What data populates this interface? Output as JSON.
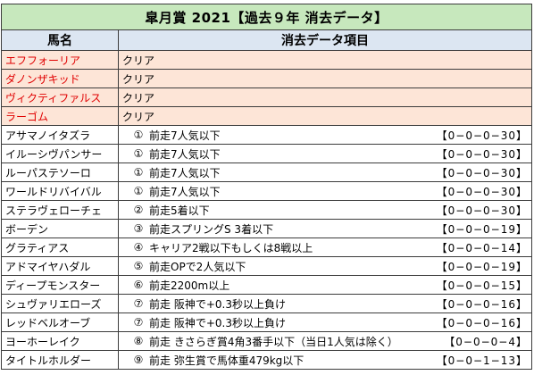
{
  "title": "皐月賞 2021【過去９年 消去データ】",
  "headers": {
    "name": "馬名",
    "data": "消去データ項目"
  },
  "clear_horses": [
    {
      "name": "エフフォーリア",
      "status": "クリア"
    },
    {
      "name": "ダノンザキッド",
      "status": "クリア"
    },
    {
      "name": "ヴィクティファルス",
      "status": "クリア"
    },
    {
      "name": "ラーゴム",
      "status": "クリア"
    }
  ],
  "eliminated_horses": [
    {
      "name": "アサマノイタズラ",
      "num": "①",
      "condition": "前走7人気以下",
      "record": "【0−0−0−30】"
    },
    {
      "name": "イルーシヴパンサー",
      "num": "①",
      "condition": "前走7人気以下",
      "record": "【0−0−0−30】"
    },
    {
      "name": "ルーパステソーロ",
      "num": "①",
      "condition": "前走7人気以下",
      "record": "【0−0−0−30】"
    },
    {
      "name": "ワールドリバイバル",
      "num": "①",
      "condition": "前走7人気以下",
      "record": "【0−0−0−30】"
    },
    {
      "name": "ステラヴェローチェ",
      "num": "②",
      "condition": "前走5着以下",
      "record": "【0−0−0−30】"
    },
    {
      "name": "ボーデン",
      "num": "③",
      "condition": "前走スプリングS 3着以下",
      "record": "【0−0−0−19】"
    },
    {
      "name": "グラティアス",
      "num": "④",
      "condition": "キャリア2戦以下もしくは8戦以上",
      "record": "【0−0−0−14】"
    },
    {
      "name": "アドマイヤハダル",
      "num": "⑤",
      "condition": "前走OPで2人気以下",
      "record": "【0−0−0−19】"
    },
    {
      "name": "ディープモンスター",
      "num": "⑥",
      "condition": "前走2200m以上",
      "record": "【0−0−0−15】"
    },
    {
      "name": "シュヴァリエローズ",
      "num": "⑦",
      "condition": "前走 阪神で+0.3秒以上負け",
      "record": "【0−0−0−16】"
    },
    {
      "name": "レッドベルオーブ",
      "num": "⑦",
      "condition": "前走 阪神で+0.3秒以上負け",
      "record": "【0−0−0−16】"
    },
    {
      "name": "ヨーホーレイク",
      "num": "⑧",
      "condition": "前走 きさらぎ賞4角3番手以下（当日1人気は除く）",
      "record": "【0−0−0−4】"
    },
    {
      "name": "タイトルホルダー",
      "num": "⑨",
      "condition": "前走 弥生賞で馬体重479kg以下",
      "record": "【0−0−1−13】"
    }
  ]
}
